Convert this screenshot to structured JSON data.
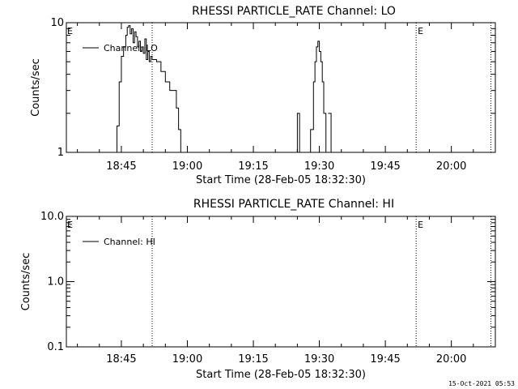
{
  "footer_timestamp": "15-Oct-2021 05:53",
  "chart_data": [
    {
      "type": "line",
      "title": "RHESSI PARTICLE_RATE Channel: LO",
      "xlabel": "Start Time (28-Feb-05 18:32:30)",
      "ylabel": "Counts/sec",
      "yscale": "log",
      "ylim": [
        1,
        10
      ],
      "xlim": [
        "18:32:30",
        "20:10:00"
      ],
      "yticks": [
        {
          "value": 1,
          "label": "1"
        },
        {
          "value": 10,
          "label": "10"
        }
      ],
      "xticks": [
        "18:45",
        "19:00",
        "19:15",
        "19:30",
        "19:45",
        "20:00"
      ],
      "legend": {
        "label": "Channel: LO",
        "placement": "top-left"
      },
      "grid": false,
      "markers": [
        {
          "time": "18:52:00",
          "label": ""
        },
        {
          "time": "19:52:00",
          "label": "E"
        },
        {
          "time": "20:09:00",
          "label": ""
        }
      ],
      "left_edge_label": "E",
      "series": [
        {
          "points": [
            [
              "18:43:40",
              1
            ],
            [
              "18:44:00",
              1.6
            ],
            [
              "18:44:30",
              3.5
            ],
            [
              "18:45:00",
              5.5
            ],
            [
              "18:45:30",
              6.5
            ],
            [
              "18:46:00",
              8.0
            ],
            [
              "18:46:20",
              9.2
            ],
            [
              "18:46:40",
              9.5
            ],
            [
              "18:47:00",
              8.2
            ],
            [
              "18:47:20",
              9.0
            ],
            [
              "18:47:40",
              7.0
            ],
            [
              "18:48:00",
              8.5
            ],
            [
              "18:48:20",
              7.8
            ],
            [
              "18:48:40",
              6.5
            ],
            [
              "18:49:00",
              7.2
            ],
            [
              "18:49:20",
              6.0
            ],
            [
              "18:49:40",
              6.5
            ],
            [
              "18:50:00",
              5.8
            ],
            [
              "18:50:20",
              7.5
            ],
            [
              "18:50:40",
              5.2
            ],
            [
              "18:51:00",
              6.0
            ],
            [
              "18:51:20",
              5.0
            ],
            [
              "18:51:40",
              5.5
            ],
            [
              "18:52:00",
              5.2
            ],
            [
              "18:53:00",
              5.0
            ],
            [
              "18:54:00",
              4.2
            ],
            [
              "18:55:00",
              3.5
            ],
            [
              "18:56:00",
              3.0
            ],
            [
              "18:57:00",
              3.0
            ],
            [
              "18:57:30",
              2.2
            ],
            [
              "18:58:00",
              1.5
            ],
            [
              "18:58:30",
              1
            ],
            [
              "19:24:20",
              1
            ],
            [
              "19:25:00",
              2.0
            ],
            [
              "19:25:30",
              1
            ],
            [
              "19:27:30",
              1
            ],
            [
              "19:28:00",
              1.5
            ],
            [
              "19:28:40",
              3.5
            ],
            [
              "19:29:00",
              5.0
            ],
            [
              "19:29:20",
              6.5
            ],
            [
              "19:29:40",
              7.2
            ],
            [
              "19:30:00",
              6.0
            ],
            [
              "19:30:20",
              5.0
            ],
            [
              "19:30:40",
              3.5
            ],
            [
              "19:31:00",
              2.0
            ],
            [
              "19:31:30",
              1
            ],
            [
              "19:32:00",
              2.0
            ],
            [
              "19:32:40",
              1
            ]
          ]
        }
      ]
    },
    {
      "type": "line",
      "title": "RHESSI PARTICLE_RATE Channel: HI",
      "xlabel": "Start Time (28-Feb-05 18:32:30)",
      "ylabel": "Counts/sec",
      "yscale": "log",
      "ylim": [
        0.1,
        10
      ],
      "xlim": [
        "18:32:30",
        "20:10:00"
      ],
      "yticks": [
        {
          "value": 0.1,
          "label": "0.1"
        },
        {
          "value": 1,
          "label": "1.0"
        },
        {
          "value": 10,
          "label": "10.0"
        }
      ],
      "xticks": [
        "18:45",
        "19:00",
        "19:15",
        "19:30",
        "19:45",
        "20:00"
      ],
      "legend": {
        "label": "Channel: HI",
        "placement": "top-left"
      },
      "grid": false,
      "markers": [
        {
          "time": "18:52:00",
          "label": ""
        },
        {
          "time": "19:52:00",
          "label": "E"
        },
        {
          "time": "20:09:00",
          "label": ""
        }
      ],
      "left_edge_label": "E",
      "series": [
        {
          "points": []
        }
      ]
    }
  ]
}
